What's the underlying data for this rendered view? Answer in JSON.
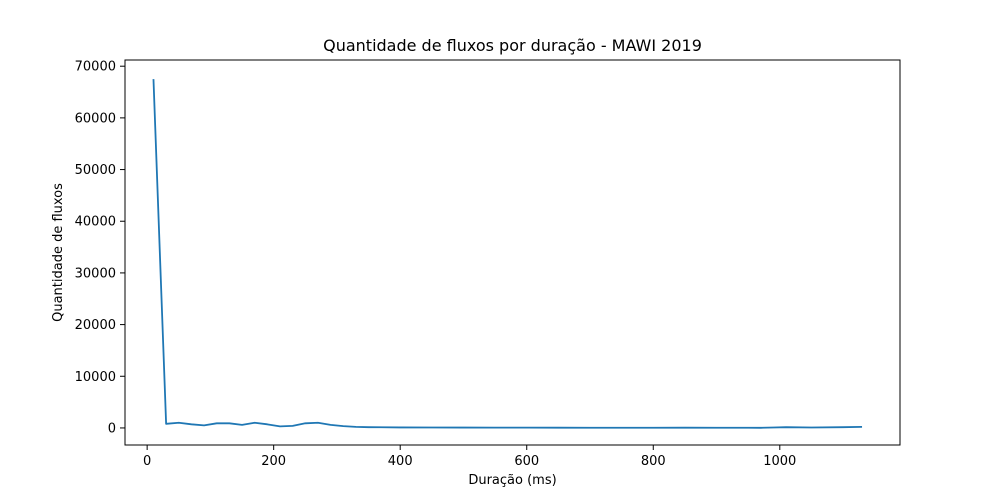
{
  "chart_data": {
    "type": "line",
    "title": "Quantidade de fluxos por duração - MAWI 2019",
    "xlabel": "Duração (ms)",
    "ylabel": "Quantidade de fluxos",
    "xlim": [
      -35,
      1190
    ],
    "ylim": [
      -3300,
      71200
    ],
    "xticks": [
      0,
      200,
      400,
      600,
      800,
      1000
    ],
    "yticks": [
      0,
      10000,
      20000,
      30000,
      40000,
      50000,
      60000,
      70000
    ],
    "grid": false,
    "line_color": "#1f77b4",
    "series": [
      {
        "x": [
          10,
          30,
          50,
          70,
          90,
          110,
          130,
          150,
          170,
          190,
          210,
          230,
          250,
          270,
          290,
          310,
          330,
          350,
          400,
          450,
          500,
          550,
          600,
          650,
          700,
          750,
          800,
          850,
          900,
          950,
          970,
          990,
          1010,
          1050,
          1100,
          1130
        ],
        "y": [
          67500,
          800,
          1000,
          700,
          500,
          900,
          900,
          600,
          1000,
          700,
          300,
          400,
          900,
          1000,
          600,
          350,
          200,
          150,
          100,
          80,
          70,
          60,
          60,
          50,
          40,
          40,
          40,
          50,
          40,
          40,
          30,
          80,
          150,
          80,
          150,
          200
        ]
      }
    ]
  }
}
